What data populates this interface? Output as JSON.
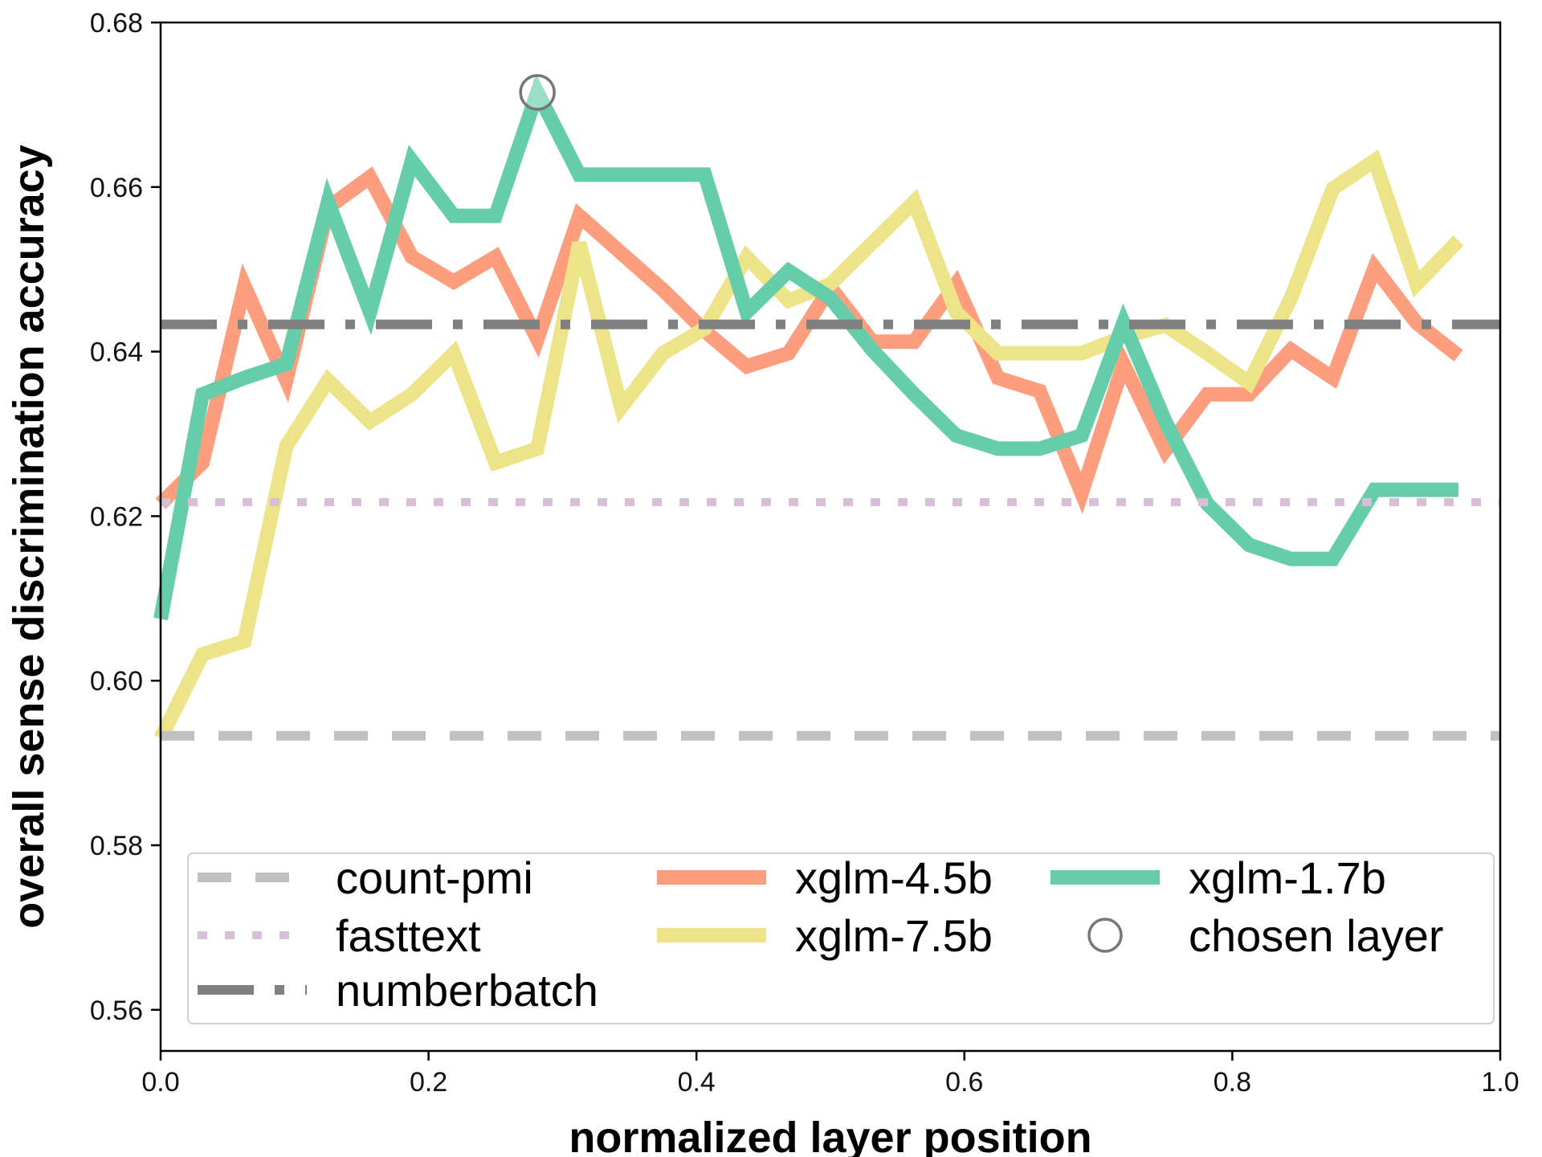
{
  "chart_data": {
    "type": "line",
    "xlabel": "normalized layer position",
    "ylabel": "overall sense discrimination accuracy",
    "xlim": [
      0.0,
      1.0
    ],
    "ylim": [
      0.555,
      0.68
    ],
    "xticks": [
      0.0,
      0.2,
      0.4,
      0.6,
      0.8,
      1.0
    ],
    "xtick_labels": [
      "0.0",
      "0.2",
      "0.4",
      "0.6",
      "0.8",
      "1.0"
    ],
    "yticks": [
      0.56,
      0.58,
      0.6,
      0.62,
      0.64,
      0.66,
      0.68
    ],
    "ytick_labels": [
      "0.56",
      "0.58",
      "0.60",
      "0.62",
      "0.64",
      "0.66",
      "0.68"
    ],
    "grid": false,
    "legend_position": "lower-center",
    "baselines": [
      {
        "name": "count-pmi",
        "value": 0.5933,
        "style": "dashed",
        "color": "#c0c0c0"
      },
      {
        "name": "fasttext",
        "value": 0.6217,
        "style": "dotted",
        "color": "#d8bfd8"
      },
      {
        "name": "numberbatch",
        "value": 0.6433,
        "style": "dashdot",
        "color": "#808080"
      }
    ],
    "series": [
      {
        "name": "xglm-4.5b",
        "color": "#fc9e7d",
        "x": [
          0.0,
          0.03125,
          0.0625,
          0.09375,
          0.125,
          0.15625,
          0.1875,
          0.21875,
          0.25,
          0.28125,
          0.3125,
          0.34375,
          0.375,
          0.40625,
          0.4375,
          0.46875,
          0.5,
          0.53125,
          0.5625,
          0.59375,
          0.625,
          0.65625,
          0.6875,
          0.71875,
          0.75,
          0.78125,
          0.8125,
          0.84375,
          0.875,
          0.90625,
          0.9375,
          0.96875
        ],
        "values": [
          0.6215,
          0.6265,
          0.648,
          0.6365,
          0.6575,
          0.6612,
          0.6515,
          0.6485,
          0.6515,
          0.6415,
          0.6565,
          0.652,
          0.6475,
          0.6425,
          0.6382,
          0.6398,
          0.6478,
          0.6412,
          0.6412,
          0.6482,
          0.6368,
          0.6352,
          0.6228,
          0.6385,
          0.628,
          0.6348,
          0.6348,
          0.6402,
          0.6368,
          0.6502,
          0.6435,
          0.6395
        ]
      },
      {
        "name": "xglm-7.5b",
        "color": "#ede48a",
        "x": [
          0.0,
          0.03125,
          0.0625,
          0.09375,
          0.125,
          0.15625,
          0.1875,
          0.21875,
          0.25,
          0.28125,
          0.3125,
          0.34375,
          0.375,
          0.40625,
          0.4375,
          0.46875,
          0.5,
          0.53125,
          0.5625,
          0.59375,
          0.625,
          0.65625,
          0.6875,
          0.71875,
          0.75,
          0.78125,
          0.8125,
          0.84375,
          0.875,
          0.90625,
          0.9375,
          0.96875
        ],
        "values": [
          0.593,
          0.6032,
          0.6048,
          0.6285,
          0.6365,
          0.6315,
          0.6348,
          0.6398,
          0.6265,
          0.6282,
          0.6532,
          0.6332,
          0.6398,
          0.6428,
          0.6515,
          0.6462,
          0.6482,
          0.6532,
          0.6582,
          0.6448,
          0.6398,
          0.6398,
          0.6398,
          0.6418,
          0.6432,
          0.6398,
          0.6362,
          0.6465,
          0.6598,
          0.6632,
          0.6482,
          0.6535
        ]
      },
      {
        "name": "xglm-1.7b",
        "color": "#66cdaa",
        "x": [
          0.0,
          0.03125,
          0.0625,
          0.09375,
          0.125,
          0.15625,
          0.1875,
          0.21875,
          0.25,
          0.28125,
          0.3125,
          0.34375,
          0.375,
          0.40625,
          0.4375,
          0.46875,
          0.5,
          0.53125,
          0.5625,
          0.59375,
          0.625,
          0.65625,
          0.6875,
          0.71875,
          0.75,
          0.78125,
          0.8125,
          0.84375,
          0.875,
          0.90625,
          0.9375,
          0.96875
        ],
        "values": [
          0.6075,
          0.6348,
          0.6368,
          0.6385,
          0.6582,
          0.6448,
          0.6632,
          0.6565,
          0.6565,
          0.6715,
          0.6615,
          0.6615,
          0.6615,
          0.6615,
          0.6448,
          0.6498,
          0.6465,
          0.6402,
          0.6348,
          0.6298,
          0.6282,
          0.6282,
          0.6298,
          0.6435,
          0.6315,
          0.6215,
          0.6165,
          0.6148,
          0.6148,
          0.6232,
          0.6232,
          0.6232
        ]
      }
    ],
    "chosen_layer": {
      "name": "chosen layer",
      "x": 0.28125,
      "y": 0.6715,
      "color": "#777777"
    },
    "legend_entries": [
      "count-pmi",
      "xglm-4.5b",
      "xglm-1.7b",
      "fasttext",
      "xglm-7.5b",
      "chosen layer",
      "numberbatch"
    ]
  }
}
